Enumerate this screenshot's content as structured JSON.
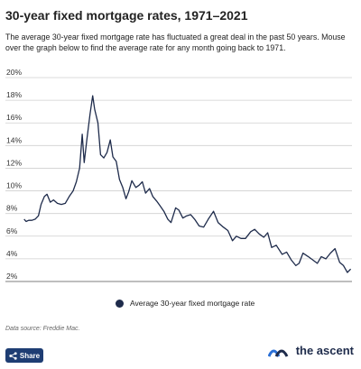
{
  "header": {
    "title": "30-year fixed mortgage rates, 1971–2021",
    "description": "The average 30-year fixed mortgage rate has fluctuated a great deal in the past 50 years. Mouse over the graph below to find the average rate for any month going back to 1971."
  },
  "footer": {
    "source": "Data source: Freddie Mac.",
    "share_label": "Share",
    "brand": "the ascent",
    "brand_color": "#1e2b4b",
    "share_color": "#1e3d73",
    "icons": {
      "share": "share-icon",
      "logo": "ascent-logo-icon"
    }
  },
  "chart_data": {
    "type": "line",
    "title": "30-year fixed mortgage rates, 1971–2021",
    "xlabel": "",
    "ylabel": "",
    "x_range": [
      "1971-04",
      "2021-06"
    ],
    "ylim": [
      2,
      20
    ],
    "yticks": [
      "2%",
      "4%",
      "6%",
      "8%",
      "10%",
      "12%",
      "14%",
      "16%",
      "18%",
      "20%"
    ],
    "grid": true,
    "legend_position": "bottom",
    "series": [
      {
        "name": "Average 30-year fixed mortgage rate",
        "color": "#1e2b4b",
        "x": [
          1971.3,
          1971.6,
          1972.0,
          1972.5,
          1973.0,
          1973.5,
          1973.9,
          1974.4,
          1974.8,
          1975.3,
          1975.8,
          1976.4,
          1977.0,
          1977.6,
          1978.2,
          1978.8,
          1979.3,
          1979.8,
          1980.2,
          1980.5,
          1980.9,
          1981.4,
          1981.8,
          1982.1,
          1982.6,
          1983.0,
          1983.5,
          1984.0,
          1984.5,
          1984.9,
          1985.4,
          1985.9,
          1986.4,
          1986.9,
          1987.3,
          1987.8,
          1988.4,
          1988.9,
          1989.4,
          1989.9,
          1990.5,
          1991.0,
          1991.6,
          1992.1,
          1992.7,
          1993.3,
          1993.8,
          1994.5,
          1995.0,
          1995.6,
          1996.2,
          1996.8,
          1997.4,
          1998.1,
          1998.8,
          1999.5,
          2000.3,
          2001.0,
          2001.8,
          2002.5,
          2003.2,
          2003.8,
          2004.5,
          2005.2,
          2006.0,
          2006.6,
          2007.3,
          2008.0,
          2008.6,
          2009.2,
          2009.9,
          2010.8,
          2011.5,
          2012.2,
          2012.9,
          2013.4,
          2014.0,
          2014.8,
          2015.5,
          2016.2,
          2016.8,
          2017.5,
          2018.2,
          2018.9,
          2019.6,
          2020.2,
          2020.8,
          2021.3
        ],
        "y": [
          7.5,
          7.3,
          7.4,
          7.4,
          7.5,
          7.8,
          8.8,
          9.5,
          9.7,
          9.0,
          9.2,
          8.9,
          8.8,
          8.9,
          9.5,
          10.0,
          10.8,
          12.0,
          15.0,
          12.5,
          14.5,
          16.8,
          18.4,
          17.2,
          16.0,
          13.2,
          12.9,
          13.4,
          14.5,
          13.0,
          12.6,
          11.0,
          10.3,
          9.3,
          9.9,
          10.9,
          10.3,
          10.5,
          10.8,
          9.8,
          10.2,
          9.5,
          9.1,
          8.7,
          8.2,
          7.5,
          7.2,
          8.5,
          8.3,
          7.6,
          7.8,
          7.9,
          7.5,
          6.9,
          6.8,
          7.5,
          8.2,
          7.2,
          6.8,
          6.5,
          5.6,
          6.0,
          5.8,
          5.8,
          6.4,
          6.6,
          6.2,
          5.9,
          6.3,
          5.0,
          5.2,
          4.4,
          4.6,
          3.9,
          3.4,
          3.6,
          4.5,
          4.2,
          3.9,
          3.6,
          4.2,
          4.0,
          4.5,
          4.9,
          3.7,
          3.4,
          2.8,
          3.1
        ]
      }
    ]
  }
}
